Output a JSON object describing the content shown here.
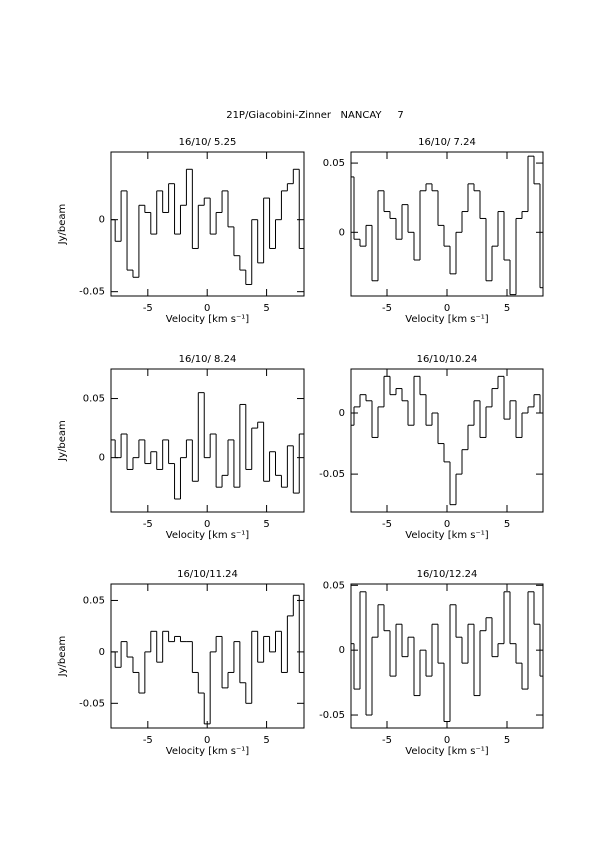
{
  "title": "21P/Giacobini-Zinner   NANCAY     7",
  "chart_data": [
    {
      "type": "line",
      "drawstyle": "steps-mid",
      "title": "16/10/ 5.25",
      "xlabel": "Velocity [km s⁻¹]",
      "ylabel": "Jy/beam",
      "xlim": [
        -8.1,
        8.15
      ],
      "ylim": [
        -0.053,
        0.047
      ],
      "xticks": [
        -5,
        0,
        5
      ],
      "yticks": [
        -0.05,
        0
      ],
      "x": [
        -8,
        -7.5,
        -7,
        -6.5,
        -6,
        -5.5,
        -5,
        -4.5,
        -4,
        -3.5,
        -3,
        -2.5,
        -2,
        -1.5,
        -1,
        -0.5,
        0,
        0.5,
        1,
        1.5,
        2,
        2.5,
        3,
        3.5,
        4,
        4.5,
        5,
        5.5,
        6,
        6.5,
        7,
        7.5,
        8
      ],
      "values": [
        0.0,
        -0.015,
        0.02,
        -0.035,
        -0.04,
        0.01,
        0.005,
        -0.01,
        0.02,
        0.005,
        0.025,
        -0.01,
        0.01,
        0.035,
        -0.02,
        0.01,
        0.015,
        -0.01,
        0.005,
        0.02,
        -0.005,
        -0.025,
        -0.035,
        -0.045,
        0.0,
        -0.03,
        0.015,
        -0.02,
        0.0,
        0.02,
        0.025,
        0.035,
        -0.02
      ]
    },
    {
      "type": "line",
      "drawstyle": "steps-mid",
      "title": "16/10/ 7.24",
      "xlabel": "Velocity [km s⁻¹]",
      "xlim": [
        -8.0,
        8.0
      ],
      "ylim": [
        -0.046,
        0.058
      ],
      "xticks": [
        -5,
        0,
        5
      ],
      "yticks": [
        0,
        0.05
      ],
      "x": [
        -8,
        -7.5,
        -7,
        -6.5,
        -6,
        -5.5,
        -5,
        -4.5,
        -4,
        -3.5,
        -3,
        -2.5,
        -2,
        -1.5,
        -1,
        -0.5,
        0,
        0.5,
        1,
        1.5,
        2,
        2.5,
        3,
        3.5,
        4,
        4.5,
        5,
        5.5,
        6,
        6.5,
        7,
        7.5,
        8
      ],
      "values": [
        0.04,
        -0.005,
        -0.01,
        0.005,
        -0.035,
        0.03,
        0.015,
        0.01,
        -0.005,
        0.02,
        0.0,
        -0.02,
        0.03,
        0.035,
        0.03,
        0.005,
        -0.01,
        -0.03,
        0.0,
        0.015,
        0.035,
        0.03,
        0.01,
        -0.035,
        -0.01,
        0.015,
        -0.02,
        -0.045,
        0.01,
        0.015,
        0.055,
        0.035,
        -0.04
      ]
    },
    {
      "type": "line",
      "drawstyle": "steps-mid",
      "title": "16/10/ 8.24",
      "xlabel": "Velocity [km s⁻¹]",
      "ylabel": "Jy/beam",
      "xlim": [
        -8.1,
        8.15
      ],
      "ylim": [
        -0.046,
        0.075
      ],
      "xticks": [
        -5,
        0,
        5
      ],
      "yticks": [
        0,
        0.05
      ],
      "x": [
        -8,
        -7.5,
        -7,
        -6.5,
        -6,
        -5.5,
        -5,
        -4.5,
        -4,
        -3.5,
        -3,
        -2.5,
        -2,
        -1.5,
        -1,
        -0.5,
        0,
        0.5,
        1,
        1.5,
        2,
        2.5,
        3,
        3.5,
        4,
        4.5,
        5,
        5.5,
        6,
        6.5,
        7,
        7.5,
        8
      ],
      "values": [
        0.015,
        0.0,
        0.02,
        -0.01,
        0.0,
        0.015,
        -0.005,
        0.005,
        -0.01,
        0.015,
        -0.005,
        -0.035,
        0.0,
        0.015,
        -0.02,
        0.055,
        0.0,
        0.02,
        -0.025,
        -0.015,
        0.015,
        -0.025,
        0.045,
        -0.01,
        0.025,
        0.03,
        -0.02,
        0.005,
        -0.015,
        -0.025,
        0.01,
        -0.03,
        0.02
      ]
    },
    {
      "type": "line",
      "drawstyle": "steps-mid",
      "title": "16/10/10.24",
      "xlabel": "Velocity [km s⁻¹]",
      "xlim": [
        -8.0,
        8.0
      ],
      "ylim": [
        -0.081,
        0.036
      ],
      "xticks": [
        -5,
        0,
        5
      ],
      "yticks": [
        -0.05,
        0
      ],
      "x": [
        -8,
        -7.5,
        -7,
        -6.5,
        -6,
        -5.5,
        -5,
        -4.5,
        -4,
        -3.5,
        -3,
        -2.5,
        -2,
        -1.5,
        -1,
        -0.5,
        0,
        0.5,
        1,
        1.5,
        2,
        2.5,
        3,
        3.5,
        4,
        4.5,
        5,
        5.5,
        6,
        6.5,
        7,
        7.5,
        8
      ],
      "values": [
        -0.01,
        0.005,
        0.015,
        0.01,
        -0.02,
        0.005,
        0.03,
        0.015,
        0.02,
        0.01,
        -0.01,
        0.03,
        0.015,
        -0.01,
        0.0,
        -0.025,
        -0.04,
        -0.075,
        -0.05,
        -0.03,
        -0.01,
        0.01,
        -0.02,
        0.005,
        0.02,
        0.03,
        -0.005,
        0.01,
        -0.02,
        0.0,
        0.005,
        0.015,
        0.0
      ]
    },
    {
      "type": "line",
      "drawstyle": "steps-mid",
      "title": "16/10/11.24",
      "xlabel": "Velocity [km s⁻¹]",
      "ylabel": "Jy/beam",
      "xlim": [
        -8.1,
        8.15
      ],
      "ylim": [
        -0.074,
        0.066
      ],
      "xticks": [
        -5,
        0,
        5
      ],
      "yticks": [
        -0.05,
        0,
        0.05
      ],
      "x": [
        -8,
        -7.5,
        -7,
        -6.5,
        -6,
        -5.5,
        -5,
        -4.5,
        -4,
        -3.5,
        -3,
        -2.5,
        -2,
        -1.5,
        -1,
        -0.5,
        0,
        0.5,
        1,
        1.5,
        2,
        2.5,
        3,
        3.5,
        4,
        4.5,
        5,
        5.5,
        6,
        6.5,
        7,
        7.5,
        8
      ],
      "values": [
        0.0,
        -0.015,
        0.01,
        -0.005,
        -0.02,
        -0.04,
        0.0,
        0.02,
        -0.01,
        0.02,
        0.01,
        0.015,
        0.01,
        0.01,
        -0.02,
        -0.04,
        -0.07,
        0.0,
        0.015,
        -0.035,
        -0.02,
        0.01,
        -0.03,
        -0.05,
        0.02,
        -0.01,
        0.015,
        0.0,
        0.02,
        -0.02,
        0.035,
        0.055,
        -0.02
      ]
    },
    {
      "type": "line",
      "drawstyle": "steps-mid",
      "title": "16/10/12.24",
      "xlabel": "Velocity [km s⁻¹]",
      "xlim": [
        -8.0,
        8.0
      ],
      "ylim": [
        -0.06,
        0.051
      ],
      "xticks": [
        -5,
        0,
        5
      ],
      "yticks": [
        -0.05,
        0,
        0.05
      ],
      "x": [
        -8,
        -7.5,
        -7,
        -6.5,
        -6,
        -5.5,
        -5,
        -4.5,
        -4,
        -3.5,
        -3,
        -2.5,
        -2,
        -1.5,
        -1,
        -0.5,
        0,
        0.5,
        1,
        1.5,
        2,
        2.5,
        3,
        3.5,
        4,
        4.5,
        5,
        5.5,
        6,
        6.5,
        7,
        7.5,
        8
      ],
      "values": [
        0.005,
        -0.03,
        0.045,
        -0.05,
        0.01,
        0.035,
        0.015,
        -0.02,
        0.02,
        -0.005,
        0.01,
        -0.035,
        0.0,
        -0.02,
        0.02,
        -0.01,
        -0.055,
        0.035,
        0.01,
        -0.01,
        0.02,
        -0.035,
        0.015,
        0.025,
        -0.005,
        0.005,
        0.045,
        0.005,
        -0.01,
        -0.03,
        0.045,
        0.02,
        -0.02
      ]
    }
  ]
}
